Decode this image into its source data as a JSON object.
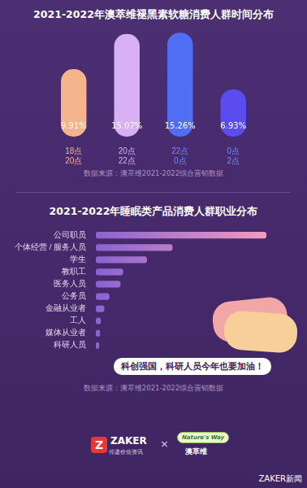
{
  "chart_data": [
    {
      "type": "bar",
      "title": "2021-2022年澳萃维褪黑素软糖消费人群时间分布",
      "categories": [
        [
          "18点",
          "20点"
        ],
        [
          "20点",
          "22点"
        ],
        [
          "22点",
          "0点"
        ],
        [
          "0点",
          "2点"
        ]
      ],
      "values": [
        9.91,
        15.07,
        15.26,
        6.93
      ],
      "value_labels": [
        "9.91%",
        "15.07%",
        "15.26%",
        "6.93%"
      ],
      "colors": [
        "#f6b48c",
        "#d8b0f4",
        "#4f6ef4",
        "#5b4cf0"
      ],
      "ylim": [
        0,
        16
      ],
      "grid": false,
      "tick_labels": "x",
      "data_labels": true,
      "source": "数据来源：澳萃维2021-2022综合营销数据"
    },
    {
      "type": "bar",
      "orientation": "horizontal",
      "title": "2021-2022年睡眠类产品消费人群职业分布",
      "categories": [
        "公司职员",
        "个体经营 / 服务人员",
        "学生",
        "教职工",
        "医务人员",
        "公务员",
        "金融从业者",
        "工人",
        "媒体从业者",
        "科研人员"
      ],
      "values": [
        100,
        45,
        30,
        16,
        14.5,
        8,
        5,
        3,
        2.5,
        2
      ],
      "color": "#f39bbf",
      "xlim": [
        0,
        100
      ],
      "grid": false,
      "tick_labels": "y",
      "annotations": [
        "科创强国，科研人员今年也要加油！"
      ],
      "source": "数据来源：澳萃维2021-2022综合营销数据"
    }
  ],
  "footer": {
    "brand1_icon": "Z",
    "brand1": "ZAKER",
    "brand1_tagline": "传递价值资讯",
    "separator": "×",
    "brand2": "Nature's Way",
    "brand2_cn": "澳萃维",
    "watermark": "ZAKER新闻"
  }
}
